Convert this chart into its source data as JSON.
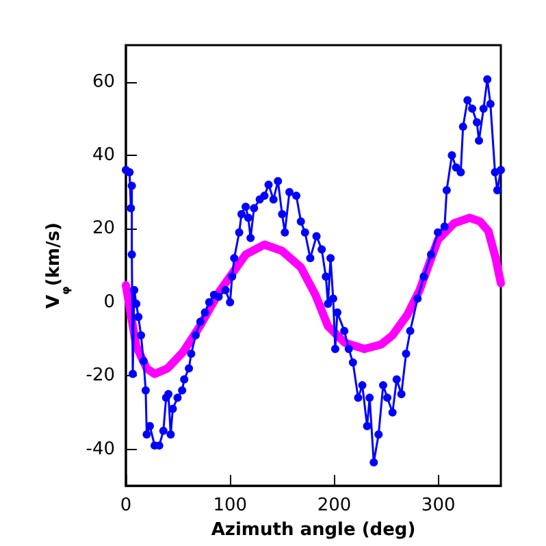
{
  "chart_data": {
    "type": "line",
    "xlabel": "Azimuth angle (deg)",
    "ylabel": "V$_{φ}$(km/s)",
    "xlim": [
      0,
      360
    ],
    "xticks": [
      0,
      100,
      200,
      300
    ],
    "ylim": [
      -50,
      70
    ],
    "yticks": [
      -40,
      -20,
      0,
      20,
      40,
      60
    ],
    "grid": false,
    "series": [
      {
        "color": "#0000ff",
        "marker": "circle",
        "line_style": "solid",
        "x": [
          0,
          3.5,
          4.8,
          5.7,
          5.7,
          6.6,
          8,
          10,
          12,
          14.5,
          17,
          19,
          20,
          23,
          27.6,
          32,
          36,
          38.6,
          40.8,
          43,
          45,
          49.6,
          54,
          56,
          60.5,
          62.7,
          67,
          71.5,
          75.9,
          80,
          84.6,
          89,
          95.6,
          100,
          102,
          104,
          108.8,
          111,
          115,
          117.5,
          119.7,
          123,
          128.5,
          133,
          137,
          141.7,
          146,
          150,
          152.6,
          157,
          163.6,
          168,
          172,
          177,
          183,
          188,
          192,
          194,
          196.5,
          199,
          201,
          203,
          209.7,
          214,
          218,
          223,
          227,
          231.6,
          234,
          238,
          242.6,
          247,
          251,
          256,
          260,
          264.5,
          269,
          273,
          280,
          286,
          293,
          299.6,
          306,
          308,
          313,
          317,
          321.5,
          323.7,
          328,
          332.5,
          337,
          339,
          343.4,
          347,
          350,
          354.4,
          356.6,
          360
        ],
        "values": [
          36,
          35.4,
          25.6,
          31.7,
          13,
          -19.5,
          3.3,
          -0.4,
          -4,
          -9,
          -16,
          -24,
          -36,
          -33.7,
          -39,
          -39,
          -35,
          -26,
          -25,
          -36,
          -29,
          -26,
          -24,
          -21,
          -18,
          -14,
          -9,
          -5.3,
          -2.8,
          0,
          2,
          1.5,
          3.3,
          0,
          7,
          12,
          19,
          24,
          26,
          23,
          17.5,
          25.6,
          28,
          29,
          32,
          28,
          33,
          24,
          19,
          30,
          29,
          22,
          19,
          12,
          18,
          14.4,
          7,
          -0.4,
          12,
          1,
          -12.7,
          -2.8,
          -7.8,
          -12.7,
          -16.4,
          -26,
          -22.6,
          -33.7,
          -26,
          -43.6,
          -36,
          -22.6,
          -26,
          -30,
          -21,
          -25,
          -14,
          -7.8,
          1,
          7,
          13,
          19,
          20.6,
          30.5,
          40,
          36.7,
          35.4,
          47.8,
          55,
          52.7,
          49,
          44,
          52.7,
          60.7,
          54,
          35.4,
          30.5,
          36
        ]
      },
      {
        "color": "#ff00ff",
        "marker": "none",
        "line_style": "solid",
        "x": [
          0,
          10,
          20,
          27.6,
          40,
          55,
          71,
          90,
          115,
          133,
          150,
          168,
          182,
          194,
          210,
          229,
          245,
          256,
          270,
          282,
          299.6,
          315,
          330,
          340,
          348,
          355,
          360
        ],
        "values": [
          4.6,
          -12,
          -18,
          -19.5,
          -18,
          -13.5,
          -6.5,
          3,
          13,
          15.7,
          14,
          9.5,
          2,
          -6.5,
          -11,
          -12.7,
          -11.5,
          -9,
          -3.5,
          3.3,
          17,
          21.5,
          23,
          22,
          19.4,
          12,
          5.2
        ]
      }
    ]
  }
}
